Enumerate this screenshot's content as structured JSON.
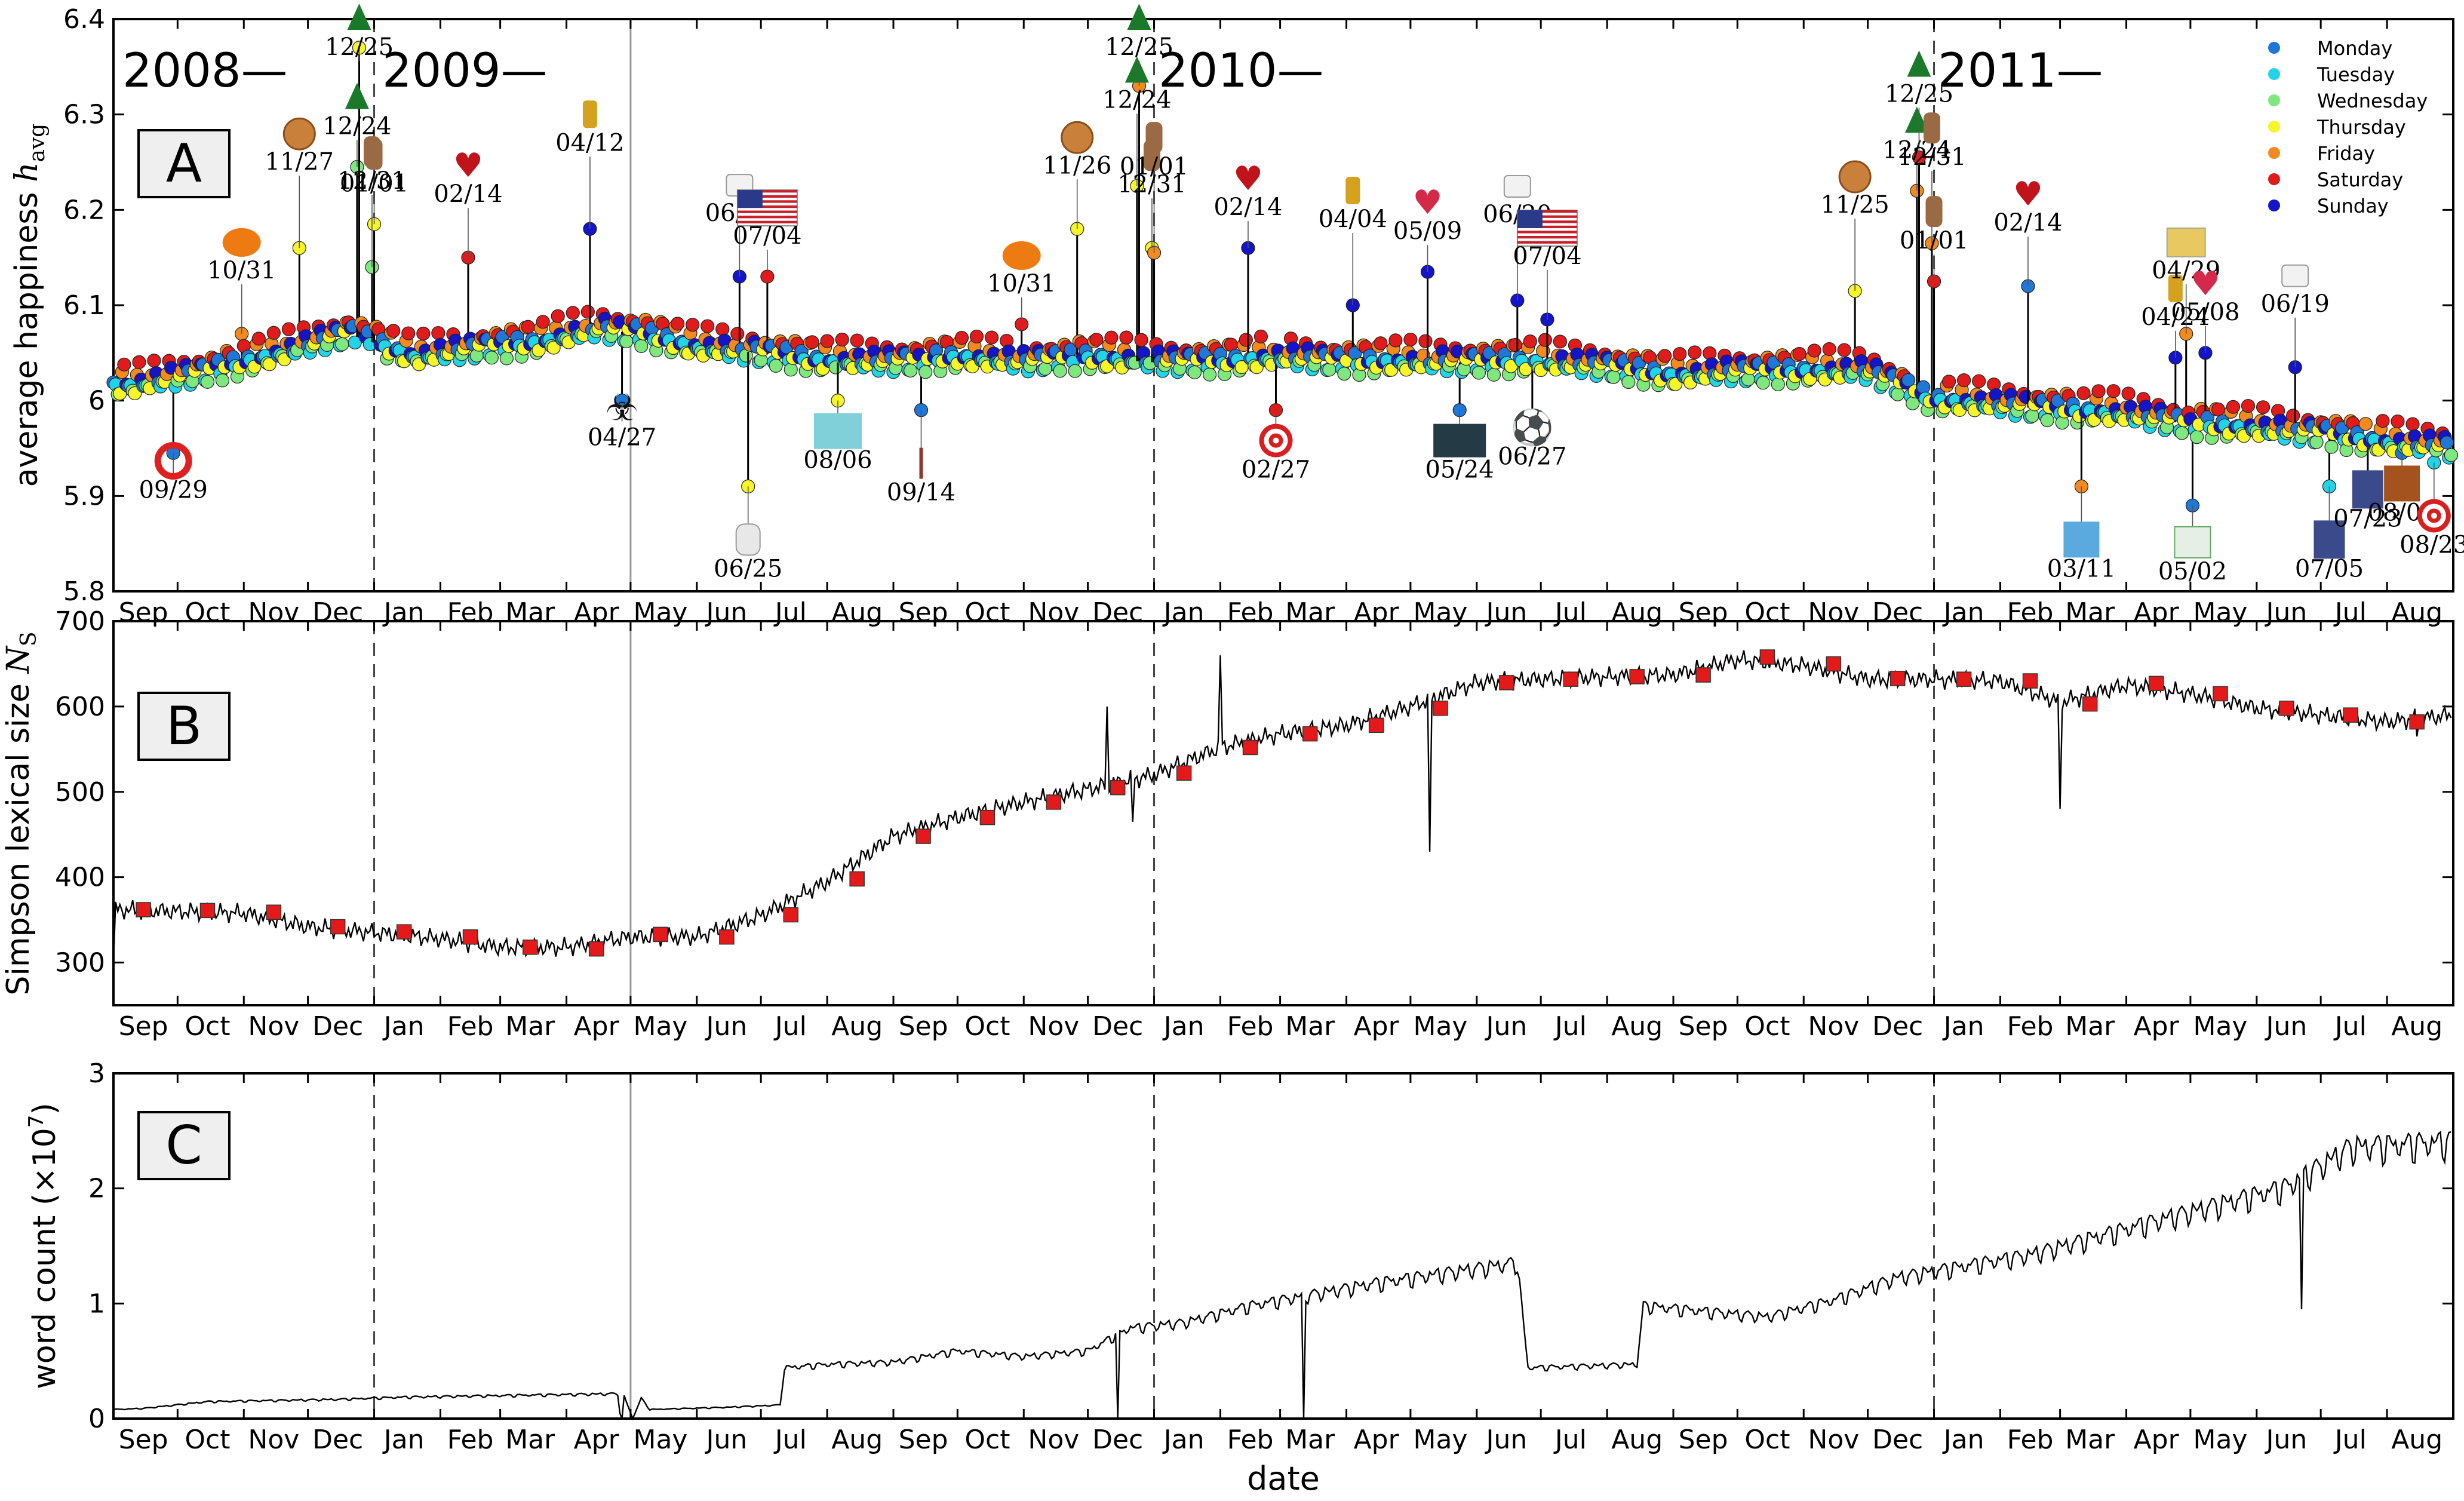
{
  "chart_data": [
    {
      "panel": "A",
      "type": "scatter",
      "ylabel": "average happiness h_avg",
      "ylabel_main": "average happiness ",
      "ylabel_sym": "h",
      "ylabel_sub": "avg",
      "ylim": [
        5.8,
        6.4
      ],
      "yticks": [
        "5.8",
        "5.9",
        "6",
        "6.1",
        "6.2",
        "6.3",
        "6.4"
      ],
      "legend_position": "top-right",
      "legend": [
        {
          "name": "Monday",
          "color": "#1f77d8"
        },
        {
          "name": "Tuesday",
          "color": "#22d4e8"
        },
        {
          "name": "Wednesday",
          "color": "#7ee87e"
        },
        {
          "name": "Thursday",
          "color": "#f5f528"
        },
        {
          "name": "Friday",
          "color": "#f28a1e"
        },
        {
          "name": "Saturday",
          "color": "#e01b1b"
        },
        {
          "name": "Sunday",
          "color": "#1414c8"
        }
      ],
      "year_labels": [
        "2008—",
        "2009—",
        "2010—",
        "2011—"
      ],
      "baseline_points": [
        [
          "2008-09-10",
          6.015
        ],
        [
          "2008-10-15",
          6.03
        ],
        [
          "2008-11-20",
          6.05
        ],
        [
          "2008-12-20",
          6.07
        ],
        [
          "2009-01-20",
          6.045
        ],
        [
          "2009-02-20",
          6.055
        ],
        [
          "2009-03-20",
          6.06
        ],
        [
          "2009-04-15",
          6.075
        ],
        [
          "2009-05-05",
          6.07
        ],
        [
          "2009-06-01",
          6.055
        ],
        [
          "2009-07-01",
          6.05
        ],
        [
          "2009-08-01",
          6.04
        ],
        [
          "2009-09-01",
          6.04
        ],
        [
          "2009-10-01",
          6.045
        ],
        [
          "2009-11-01",
          6.04
        ],
        [
          "2009-12-01",
          6.045
        ],
        [
          "2010-01-01",
          6.04
        ],
        [
          "2010-02-01",
          6.04
        ],
        [
          "2010-03-01",
          6.045
        ],
        [
          "2010-04-01",
          6.04
        ],
        [
          "2010-05-01",
          6.04
        ],
        [
          "2010-06-01",
          6.04
        ],
        [
          "2010-07-01",
          6.04
        ],
        [
          "2010-08-01",
          6.035
        ],
        [
          "2010-09-01",
          6.025
        ],
        [
          "2010-10-01",
          6.03
        ],
        [
          "2010-11-01",
          6.03
        ],
        [
          "2010-12-01",
          6.03
        ],
        [
          "2011-01-01",
          6.0
        ],
        [
          "2011-02-01",
          5.995
        ],
        [
          "2011-03-01",
          5.99
        ],
        [
          "2011-04-01",
          5.985
        ],
        [
          "2011-05-01",
          5.975
        ],
        [
          "2011-06-01",
          5.97
        ],
        [
          "2011-07-01",
          5.965
        ],
        [
          "2011-08-01",
          5.955
        ],
        [
          "2011-08-31",
          5.95
        ]
      ],
      "dip_points": [
        [
          "2008-09-29",
          5.96
        ],
        [
          "2009-04-27",
          6.0
        ],
        [
          "2009-06-25",
          5.91
        ],
        [
          "2009-08-06",
          6.0
        ],
        [
          "2009-09-14",
          5.99
        ],
        [
          "2010-02-27",
          5.99
        ],
        [
          "2010-05-24",
          5.98
        ],
        [
          "2010-06-27",
          5.97
        ],
        [
          "2011-03-11",
          5.91
        ],
        [
          "2011-05-02",
          5.89
        ],
        [
          "2011-07-05",
          5.91
        ],
        [
          "2011-07-23",
          5.92
        ],
        [
          "2011-08-08",
          5.95
        ],
        [
          "2011-08-23",
          5.94
        ]
      ],
      "events": [
        {
          "label": "09/29",
          "date": "2008-09-29",
          "value": 5.945,
          "icon": "life-ring-icon"
        },
        {
          "label": "10/31",
          "date": "2008-10-31",
          "value": 6.07,
          "icon": "pumpkin-icon"
        },
        {
          "label": "11/27",
          "date": "2008-11-27",
          "value": 6.16,
          "icon": "pie-icon"
        },
        {
          "label": "12/24",
          "date": "2008-12-24",
          "value": 6.245,
          "icon": "christmas-tree-icon"
        },
        {
          "label": "12/25",
          "date": "2008-12-25",
          "value": 6.37,
          "icon": "christmas-tree-icon"
        },
        {
          "label": "12/31",
          "date": "2008-12-31",
          "value": 6.14,
          "icon": "champagne-cork-icon"
        },
        {
          "label": "01/01",
          "date": "2009-01-01",
          "value": 6.185,
          "icon": "champagne-cork-icon"
        },
        {
          "label": "02/14",
          "date": "2009-02-14",
          "value": 6.15,
          "icon": "heart-icon"
        },
        {
          "label": "04/12",
          "date": "2009-04-12",
          "value": 6.18,
          "icon": "easter-bunny-icon"
        },
        {
          "label": "04/27",
          "date": "2009-04-27",
          "value": 6.0,
          "icon": "biohazard-icon"
        },
        {
          "label": "06/21",
          "date": "2009-06-21",
          "value": 6.13,
          "icon": "fathers-day-shirt-icon"
        },
        {
          "label": "06/25",
          "date": "2009-06-25",
          "value": 5.91,
          "icon": "white-glove-icon"
        },
        {
          "label": "07/04",
          "date": "2009-07-04",
          "value": 6.13,
          "icon": "us-flag-icon"
        },
        {
          "label": "08/06",
          "date": "2009-08-06",
          "value": 6.0,
          "icon": "twitter-whale-icon"
        },
        {
          "label": "09/14",
          "date": "2009-09-14",
          "value": 5.99,
          "icon": "figure-icon"
        },
        {
          "label": "10/31",
          "date": "2009-10-31",
          "value": 6.08,
          "icon": "pumpkin-icon"
        },
        {
          "label": "11/26",
          "date": "2009-11-26",
          "value": 6.18,
          "icon": "pie-icon"
        },
        {
          "label": "12/24",
          "date": "2009-12-24",
          "value": 6.225,
          "icon": "christmas-tree-icon"
        },
        {
          "label": "12/25",
          "date": "2009-12-25",
          "value": 6.33,
          "icon": "christmas-tree-icon"
        },
        {
          "label": "12/31",
          "date": "2009-12-31",
          "value": 6.16,
          "icon": "champagne-cork-icon"
        },
        {
          "label": "01/01",
          "date": "2010-01-01",
          "value": 6.155,
          "icon": "champagne-cork-icon"
        },
        {
          "label": "02/14",
          "date": "2010-02-14",
          "value": 6.16,
          "icon": "heart-icon"
        },
        {
          "label": "02/27",
          "date": "2010-02-27",
          "value": 5.99,
          "icon": "target-icon"
        },
        {
          "label": "04/04",
          "date": "2010-04-04",
          "value": 6.1,
          "icon": "easter-bunny-icon"
        },
        {
          "label": "05/09",
          "date": "2010-05-09",
          "value": 6.135,
          "icon": "mom-heart-icon"
        },
        {
          "label": "05/24",
          "date": "2010-05-24",
          "value": 5.99,
          "icon": "lost-icon"
        },
        {
          "label": "06/20",
          "date": "2010-06-20",
          "value": 6.105,
          "icon": "fathers-day-shirt-icon"
        },
        {
          "label": "06/27",
          "date": "2010-06-27",
          "value": 5.98,
          "icon": "soccer-ball-icon"
        },
        {
          "label": "07/04",
          "date": "2010-07-04",
          "value": 6.085,
          "icon": "us-flag-icon"
        },
        {
          "label": "11/25",
          "date": "2010-11-25",
          "value": 6.115,
          "icon": "pie-icon"
        },
        {
          "label": "12/24",
          "date": "2010-12-24",
          "value": 6.22,
          "icon": "christmas-tree-icon"
        },
        {
          "label": "12/25",
          "date": "2010-12-25",
          "value": 6.255,
          "icon": "christmas-tree-icon"
        },
        {
          "label": "12/31",
          "date": "2010-12-31",
          "value": 6.165,
          "icon": "champagne-cork-icon"
        },
        {
          "label": "01/01",
          "date": "2011-01-01",
          "value": 6.125,
          "icon": "champagne-cork-icon"
        },
        {
          "label": "02/14",
          "date": "2011-02-14",
          "value": 6.12,
          "icon": "heart-icon"
        },
        {
          "label": "03/11",
          "date": "2011-03-11",
          "value": 5.91,
          "icon": "japan-map-icon"
        },
        {
          "label": "04/24",
          "date": "2011-04-24",
          "value": 6.045,
          "icon": "easter-bunny-icon"
        },
        {
          "label": "04/29",
          "date": "2011-04-29",
          "value": 6.07,
          "icon": "royal-wedding-icon"
        },
        {
          "label": "05/02",
          "date": "2011-05-02",
          "value": 5.89,
          "icon": "map-icon"
        },
        {
          "label": "05/08",
          "date": "2011-05-08",
          "value": 6.05,
          "icon": "mom-heart-icon"
        },
        {
          "label": "06/19",
          "date": "2011-06-19",
          "value": 6.035,
          "icon": "fathers-day-shirt-icon"
        },
        {
          "label": "07/05",
          "date": "2011-07-05",
          "value": 5.91,
          "icon": "portrait-icon"
        },
        {
          "label": "07/23",
          "date": "2011-07-23",
          "value": 5.915,
          "icon": "portrait-icon"
        },
        {
          "label": "08/08",
          "date": "2011-08-08",
          "value": 5.945,
          "icon": "riot-fire-icon"
        },
        {
          "label": "08/23",
          "date": "2011-08-23",
          "value": 5.935,
          "icon": "target-icon"
        }
      ]
    },
    {
      "panel": "B",
      "type": "line",
      "ylabel": "Simpson lexical size N_S",
      "ylabel_main": "Simpson lexical size ",
      "ylabel_sym": "N",
      "ylabel_sub": "S",
      "ylim": [
        250,
        700
      ],
      "yticks": [
        "300",
        "400",
        "500",
        "600",
        "700"
      ],
      "line_points": [
        [
          "2008-09-01",
          300
        ],
        [
          "2008-09-02",
          362
        ],
        [
          "2008-10-01",
          360
        ],
        [
          "2008-11-01",
          358
        ],
        [
          "2008-12-01",
          342
        ],
        [
          "2009-01-01",
          335
        ],
        [
          "2009-02-01",
          328
        ],
        [
          "2009-03-01",
          318
        ],
        [
          "2009-04-01",
          318
        ],
        [
          "2009-05-01",
          330
        ],
        [
          "2009-06-01",
          330
        ],
        [
          "2009-07-01",
          355
        ],
        [
          "2009-08-01",
          395
        ],
        [
          "2009-09-01",
          448
        ],
        [
          "2009-10-01",
          470
        ],
        [
          "2009-11-01",
          488
        ],
        [
          "2009-12-01",
          503
        ],
        [
          "2010-01-01",
          520
        ],
        [
          "2010-02-01",
          552
        ],
        [
          "2010-03-01",
          568
        ],
        [
          "2010-04-01",
          578
        ],
        [
          "2010-05-01",
          600
        ],
        [
          "2010-06-01",
          628
        ],
        [
          "2010-07-01",
          632
        ],
        [
          "2010-08-01",
          635
        ],
        [
          "2010-09-01",
          637
        ],
        [
          "2010-10-01",
          655
        ],
        [
          "2010-11-01",
          648
        ],
        [
          "2010-12-01",
          632
        ],
        [
          "2011-01-01",
          632
        ],
        [
          "2011-02-01",
          630
        ],
        [
          "2011-03-01",
          605
        ],
        [
          "2011-04-01",
          625
        ],
        [
          "2011-05-01",
          615
        ],
        [
          "2011-06-01",
          598
        ],
        [
          "2011-07-01",
          590
        ],
        [
          "2011-08-01",
          582
        ],
        [
          "2011-08-31",
          590
        ]
      ],
      "spikes": [
        [
          "2009-12-10",
          600
        ],
        [
          "2009-12-22",
          465
        ],
        [
          "2010-02-01",
          660
        ],
        [
          "2010-05-10",
          430
        ],
        [
          "2011-03-01",
          480
        ],
        [
          "2011-08-15",
          565
        ]
      ],
      "monthly_markers": [
        [
          "2008-09-15",
          362
        ],
        [
          "2008-10-15",
          361
        ],
        [
          "2008-11-15",
          359
        ],
        [
          "2008-12-15",
          342
        ],
        [
          "2009-01-15",
          336
        ],
        [
          "2009-02-15",
          330
        ],
        [
          "2009-03-15",
          318
        ],
        [
          "2009-04-15",
          316
        ],
        [
          "2009-05-15",
          333
        ],
        [
          "2009-06-15",
          330
        ],
        [
          "2009-07-15",
          356
        ],
        [
          "2009-08-15",
          398
        ],
        [
          "2009-09-15",
          448
        ],
        [
          "2009-10-15",
          470
        ],
        [
          "2009-11-15",
          488
        ],
        [
          "2009-12-15",
          505
        ],
        [
          "2010-01-15",
          522
        ],
        [
          "2010-02-15",
          552
        ],
        [
          "2010-03-15",
          568
        ],
        [
          "2010-04-15",
          578
        ],
        [
          "2010-05-15",
          598
        ],
        [
          "2010-06-15",
          628
        ],
        [
          "2010-07-15",
          632
        ],
        [
          "2010-08-15",
          635
        ],
        [
          "2010-09-15",
          637
        ],
        [
          "2010-10-15",
          658
        ],
        [
          "2010-11-15",
          650
        ],
        [
          "2010-12-15",
          633
        ],
        [
          "2011-01-15",
          632
        ],
        [
          "2011-02-15",
          630
        ],
        [
          "2011-03-15",
          603
        ],
        [
          "2011-04-15",
          627
        ],
        [
          "2011-05-15",
          615
        ],
        [
          "2011-06-15",
          598
        ],
        [
          "2011-07-15",
          590
        ],
        [
          "2011-08-15",
          582
        ]
      ]
    },
    {
      "panel": "C",
      "type": "line",
      "ylabel": "word count (×10⁷)",
      "ylabel_main": "word count (×10",
      "ylabel_exp": "7",
      "ylabel_close": ")",
      "ylim": [
        0,
        3
      ],
      "yticks": [
        "0",
        "1",
        "2",
        "3"
      ],
      "line_points": [
        [
          "2008-09-01",
          0.08
        ],
        [
          "2008-09-15",
          0.09
        ],
        [
          "2008-10-15",
          0.15
        ],
        [
          "2008-12-15",
          0.17
        ],
        [
          "2009-01-15",
          0.19
        ],
        [
          "2009-04-25",
          0.22
        ],
        [
          "2009-04-26",
          0.05
        ],
        [
          "2009-04-28",
          0.2
        ],
        [
          "2009-05-02",
          0.0
        ],
        [
          "2009-05-06",
          0.18
        ],
        [
          "2009-05-10",
          0.08
        ],
        [
          "2009-06-15",
          0.1
        ],
        [
          "2009-07-10",
          0.12
        ],
        [
          "2009-07-12",
          0.45
        ],
        [
          "2009-08-01",
          0.48
        ],
        [
          "2009-09-01",
          0.5
        ],
        [
          "2009-10-01",
          0.6
        ],
        [
          "2009-11-01",
          0.55
        ],
        [
          "2009-12-01",
          0.6
        ],
        [
          "2009-12-20",
          0.8
        ],
        [
          "2010-01-15",
          0.85
        ],
        [
          "2010-02-15",
          1.0
        ],
        [
          "2010-04-15",
          1.2
        ],
        [
          "2010-06-20",
          1.38
        ],
        [
          "2010-06-25",
          0.45
        ],
        [
          "2010-08-15",
          0.48
        ],
        [
          "2010-08-18",
          1.0
        ],
        [
          "2010-10-15",
          0.9
        ],
        [
          "2010-11-15",
          1.05
        ],
        [
          "2010-12-15",
          1.25
        ],
        [
          "2011-02-15",
          1.45
        ],
        [
          "2011-04-15",
          1.75
        ],
        [
          "2011-06-15",
          2.05
        ],
        [
          "2011-07-15",
          2.4
        ],
        [
          "2011-08-31",
          2.45
        ]
      ],
      "spikes": [
        [
          "2009-04-27",
          0.0
        ],
        [
          "2009-12-15",
          0.0
        ],
        [
          "2010-03-12",
          0.0
        ],
        [
          "2011-06-22",
          0.95
        ]
      ]
    }
  ],
  "x_axis": {
    "xlabel": "date",
    "month_labels": [
      "Sep",
      "Oct",
      "Nov",
      "Dec",
      "Jan",
      "Feb",
      "Mar",
      "Apr",
      "May",
      "Jun",
      "Jul",
      "Aug",
      "Sep",
      "Oct",
      "Nov",
      "Dec",
      "Jan",
      "Feb",
      "Mar",
      "Apr",
      "May",
      "Jun",
      "Jul",
      "Aug",
      "Sep",
      "Oct",
      "Nov",
      "Dec",
      "Jan",
      "Feb",
      "Mar",
      "Apr",
      "May",
      "Jun",
      "Jul",
      "Aug"
    ],
    "start_date": "2008-09-01",
    "end_date": "2011-08-31",
    "year_boundaries": [
      "2009-01-01",
      "2010-01-01",
      "2011-01-01"
    ],
    "marked_date": "2009-05-01"
  }
}
